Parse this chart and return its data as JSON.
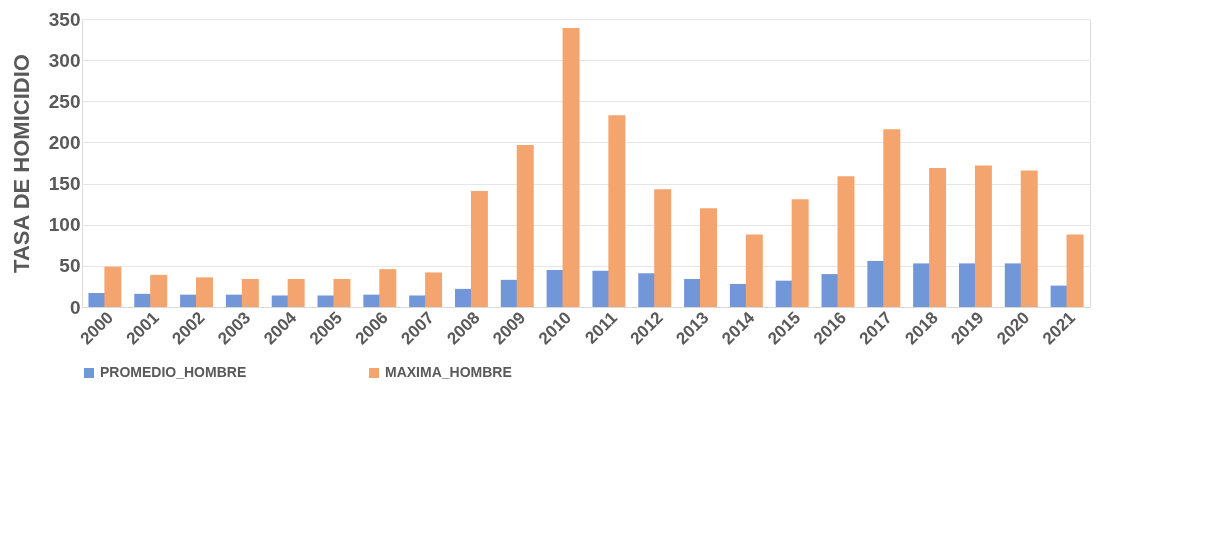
{
  "chart_data": {
    "type": "bar",
    "ylabel": "TASA DE HOMICIDIO",
    "categories": [
      "2000",
      "2001",
      "2002",
      "2003",
      "2004",
      "2005",
      "2006",
      "2007",
      "2008",
      "2009",
      "2010",
      "2011",
      "2012",
      "2013",
      "2014",
      "2015",
      "2016",
      "2017",
      "2018",
      "2019",
      "2020",
      "2021"
    ],
    "series": [
      {
        "name": "PROMEDIO_HOMBRE",
        "color": "#7197d8",
        "values": [
          17,
          16,
          15,
          15,
          14,
          14,
          15,
          14,
          22,
          33,
          45,
          44,
          41,
          34,
          28,
          32,
          40,
          56,
          53,
          53,
          53,
          26
        ]
      },
      {
        "name": "MAXIMA_HOMBRE",
        "color": "#f4a56f",
        "values": [
          49,
          39,
          36,
          34,
          34,
          34,
          46,
          42,
          141,
          197,
          339,
          233,
          143,
          120,
          88,
          131,
          159,
          216,
          169,
          172,
          166,
          88
        ]
      }
    ],
    "ylim": [
      0,
      350
    ],
    "yticks": [
      0,
      50,
      100,
      150,
      200,
      250,
      300,
      350
    ],
    "grid": "y",
    "legend": "bottom"
  }
}
